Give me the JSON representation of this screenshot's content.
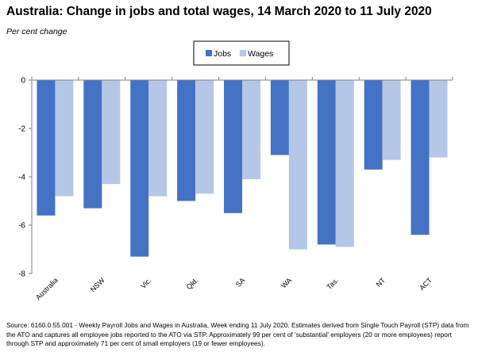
{
  "header": {
    "title": "Australia:  Change in jobs and total wages, 14 March 2020 to 11 July 2020",
    "subtitle": "Per cent change"
  },
  "colors": {
    "jobs": "#4472c4",
    "wages": "#b4c7e7",
    "axis": "#7f7f7f"
  },
  "chart_data": {
    "type": "bar",
    "title": "Australia:  Change in jobs and total wages, 14 March 2020 to 11 July 2020",
    "subtitle": "Per cent change",
    "categories": [
      "Australia",
      "NSW",
      "Vic.",
      "Qld.",
      "SA",
      "WA",
      "Tas.",
      "NT",
      "ACT"
    ],
    "series": [
      {
        "name": "Jobs",
        "values": [
          -5.6,
          -5.3,
          -7.3,
          -5.0,
          -5.5,
          -3.1,
          -6.8,
          -3.7,
          -6.4
        ]
      },
      {
        "name": "Wages",
        "values": [
          -4.8,
          -4.3,
          -4.8,
          -4.7,
          -4.1,
          -7.0,
          -6.9,
          -3.3,
          -3.2
        ]
      }
    ],
    "ylim": [
      -8,
      0
    ],
    "yticks": [
      "0",
      "-2",
      "-4",
      "-6",
      "-8"
    ],
    "ytick_values": [
      0,
      -2,
      -4,
      -6,
      -8
    ],
    "grid": false,
    "legend_position": "top-center"
  },
  "source": "Source: 6160.0.55.001 - Weekly Payroll Jobs and Wages in Australia, Week ending 11 July 2020.  Estimates derived from Single Touch Payroll (STP) data from the ATO and captures all employee jobs reported to the ATO via STP.  Approximately 99 per cent of 'substantial' employers (20 or more employees) report through STP and approximately 71 per cent of small employers (19 or fewer employees)."
}
